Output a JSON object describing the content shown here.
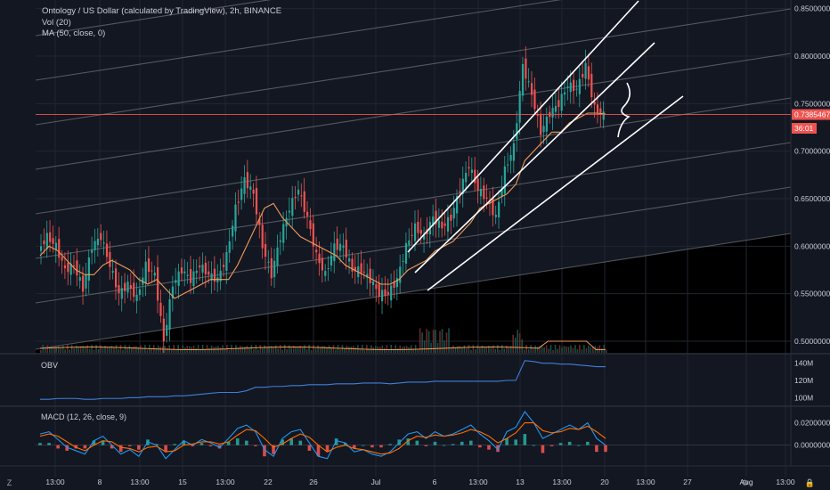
{
  "header": {
    "symbol_line": "Ontology / US Dollar (calculated by TradingView), 2h, BINANCE",
    "vol_line": "Vol (20)",
    "ma_line": "MA (50, close, 0)"
  },
  "obv_label": "OBV",
  "macd_label": "MACD (12, 26, close, 9)",
  "chart_data": [
    {
      "type": "candlestick",
      "ylim": [
        0.49,
        0.855
      ],
      "y_ticks": [
        "0.8500000",
        "0.8000000",
        "0.7500000",
        "0.7000000",
        "0.6500000",
        "0.6000000",
        "0.5500000",
        "0.5000000"
      ],
      "y_tick_values": [
        0.85,
        0.8,
        0.75,
        0.7,
        0.65,
        0.6,
        0.55,
        0.5
      ],
      "x_ticks": [
        "13:00",
        "8",
        "13:00",
        "15",
        "13:00",
        "22",
        "26",
        "Jul",
        "6",
        "13:00",
        "13",
        "13:00",
        "20",
        "13:00",
        "27",
        "Aug",
        "13:00"
      ],
      "last_price": "0.7385467",
      "last_price_value": 0.7385467,
      "countdown": "36:01",
      "price_path": [
        0.595,
        0.61,
        0.6,
        0.575,
        0.58,
        0.555,
        0.6,
        0.61,
        0.58,
        0.55,
        0.56,
        0.545,
        0.58,
        0.57,
        0.5,
        0.56,
        0.575,
        0.565,
        0.58,
        0.57,
        0.565,
        0.59,
        0.64,
        0.67,
        0.655,
        0.6,
        0.57,
        0.61,
        0.64,
        0.66,
        0.63,
        0.59,
        0.57,
        0.6,
        0.6,
        0.575,
        0.575,
        0.565,
        0.55,
        0.55,
        0.565,
        0.6,
        0.62,
        0.61,
        0.63,
        0.62,
        0.63,
        0.66,
        0.685,
        0.66,
        0.65,
        0.63,
        0.68,
        0.705,
        0.79,
        0.76,
        0.72,
        0.74,
        0.75,
        0.77,
        0.765,
        0.79,
        0.745,
        0.738
      ],
      "ma_path": [
        0.59,
        0.6,
        0.595,
        0.585,
        0.575,
        0.57,
        0.57,
        0.58,
        0.585,
        0.58,
        0.575,
        0.565,
        0.56,
        0.565,
        0.555,
        0.545,
        0.55,
        0.555,
        0.56,
        0.565,
        0.565,
        0.565,
        0.58,
        0.6,
        0.62,
        0.64,
        0.645,
        0.63,
        0.62,
        0.61,
        0.605,
        0.6,
        0.595,
        0.59,
        0.58,
        0.575,
        0.57,
        0.565,
        0.56,
        0.56,
        0.565,
        0.575,
        0.58,
        0.585,
        0.595,
        0.6,
        0.605,
        0.615,
        0.625,
        0.64,
        0.645,
        0.65,
        0.655,
        0.665,
        0.69,
        0.7,
        0.71,
        0.72,
        0.72,
        0.73,
        0.735,
        0.74,
        0.74,
        0.739
      ],
      "colors": {
        "up": "#26a69a",
        "down": "#ef5350",
        "ma": "#ef9b5a",
        "price_line": "#ef5350",
        "bg": "#131722",
        "overlay": "#2a2e39"
      }
    },
    {
      "type": "line",
      "name": "OBV",
      "y_ticks": [
        "140M",
        "120M",
        "100M"
      ],
      "y_tick_values": [
        140,
        120,
        100
      ],
      "ylim": [
        92,
        148
      ],
      "values": [
        98,
        98,
        99,
        99,
        99,
        98,
        98,
        99,
        99,
        99,
        100,
        100,
        101,
        101,
        101,
        102,
        102,
        103,
        104,
        105,
        106,
        106,
        106,
        108,
        112,
        112,
        113,
        113,
        114,
        114,
        115,
        115,
        115,
        116,
        116,
        116,
        117,
        117,
        117,
        116,
        117,
        118,
        118,
        118,
        119,
        119,
        119,
        119,
        119,
        119,
        119,
        119,
        120,
        120,
        143,
        142,
        140,
        140,
        139,
        139,
        138,
        137,
        136,
        136
      ],
      "color": "#3f7fd6"
    },
    {
      "type": "line",
      "name": "MACD",
      "y_ticks": [
        "0.0200000",
        "0.0000000"
      ],
      "y_tick_values": [
        0.02,
        0.0
      ],
      "ylim": [
        -0.017,
        0.03
      ],
      "macd": [
        0.01,
        0.012,
        0.005,
        -0.002,
        -0.005,
        -0.008,
        0.004,
        0.008,
        0.0,
        -0.008,
        -0.004,
        -0.01,
        0.003,
        0.0,
        -0.012,
        -0.004,
        0.004,
        0.0,
        0.005,
        0.002,
        -0.002,
        0.006,
        0.015,
        0.018,
        0.012,
        -0.004,
        -0.01,
        0.006,
        0.012,
        0.014,
        0.002,
        -0.01,
        -0.012,
        0.004,
        0.002,
        -0.006,
        -0.004,
        -0.008,
        -0.01,
        -0.006,
        0.002,
        0.01,
        0.012,
        0.006,
        0.012,
        0.008,
        0.01,
        0.014,
        0.018,
        0.01,
        0.004,
        -0.004,
        0.012,
        0.016,
        0.03,
        0.02,
        0.006,
        0.01,
        0.014,
        0.018,
        0.014,
        0.02,
        0.006,
        0.0
      ],
      "signal": [
        0.008,
        0.01,
        0.008,
        0.003,
        -0.002,
        -0.005,
        0.0,
        0.004,
        0.003,
        -0.002,
        -0.003,
        -0.006,
        -0.002,
        -0.001,
        -0.006,
        -0.005,
        0.0,
        0.001,
        0.003,
        0.003,
        0.001,
        0.003,
        0.009,
        0.014,
        0.013,
        0.006,
        -0.002,
        0.001,
        0.006,
        0.01,
        0.007,
        0.0,
        -0.006,
        -0.002,
        0.0,
        -0.003,
        -0.004,
        -0.006,
        -0.008,
        -0.007,
        -0.003,
        0.004,
        0.008,
        0.007,
        0.009,
        0.008,
        0.009,
        0.011,
        0.014,
        0.012,
        0.008,
        0.002,
        0.006,
        0.011,
        0.02,
        0.02,
        0.013,
        0.011,
        0.012,
        0.015,
        0.014,
        0.017,
        0.012,
        0.006
      ],
      "macd_color": "#2196f3",
      "signal_color": "#ff6d00",
      "hist_up": "#26a69a",
      "hist_down": "#ef5350"
    }
  ],
  "drawings": {
    "channel_color": "#ffffff",
    "fib_color": "#8a8d93"
  },
  "corner_buttons": {
    "z_label": "Z",
    "settings_icon": "gear-icon",
    "lock_icon": "lock-icon"
  }
}
